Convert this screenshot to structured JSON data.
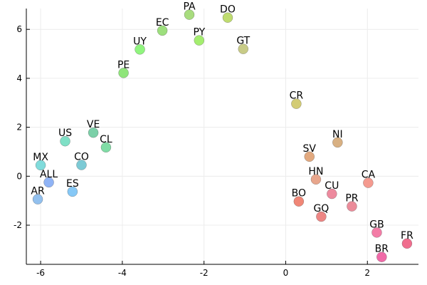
{
  "chart_data": {
    "type": "scatter",
    "title": "",
    "xlabel": "",
    "ylabel": "",
    "xlim": [
      -6.35,
      3.25
    ],
    "ylim": [
      -3.6,
      6.85
    ],
    "xticks": [
      -6,
      -4,
      -2,
      0,
      2
    ],
    "yticks": [
      -2,
      0,
      2,
      4,
      6
    ],
    "x_tick_labels": [
      "-6",
      "-4",
      "-2",
      "0",
      "2"
    ],
    "y_tick_labels": [
      "-2",
      "0",
      "2",
      "4",
      "6"
    ],
    "grid": true,
    "legend": "none",
    "points": [
      {
        "label": "PA",
        "x": -2.36,
        "y": 6.6,
        "color": "#a8dc7e"
      },
      {
        "label": "DO",
        "x": -1.42,
        "y": 6.48,
        "color": "#bfdc6f"
      },
      {
        "label": "EC",
        "x": -3.02,
        "y": 5.95,
        "color": "#9ddf7d"
      },
      {
        "label": "PY",
        "x": -2.12,
        "y": 5.55,
        "color": "#a4ee6f"
      },
      {
        "label": "UY",
        "x": -3.57,
        "y": 5.18,
        "color": "#90f57e"
      },
      {
        "label": "GT",
        "x": -1.04,
        "y": 5.2,
        "color": "#c8cb87"
      },
      {
        "label": "PE",
        "x": -3.97,
        "y": 4.22,
        "color": "#8fe57a"
      },
      {
        "label": "CR",
        "x": 0.26,
        "y": 2.96,
        "color": "#d3cc75"
      },
      {
        "label": "VE",
        "x": -4.71,
        "y": 1.78,
        "color": "#7bd0a8"
      },
      {
        "label": "US",
        "x": -5.4,
        "y": 1.43,
        "color": "#7fe0c6"
      },
      {
        "label": "CL",
        "x": -4.4,
        "y": 1.18,
        "color": "#80dca5"
      },
      {
        "label": "NI",
        "x": 1.27,
        "y": 1.38,
        "color": "#d8b082"
      },
      {
        "label": "SV",
        "x": 0.58,
        "y": 0.8,
        "color": "#e2a97f"
      },
      {
        "label": "MX",
        "x": -6.0,
        "y": 0.45,
        "color": "#80dbdb"
      },
      {
        "label": "CO",
        "x": -5.0,
        "y": 0.46,
        "color": "#7ccad5"
      },
      {
        "label": "ALL",
        "x": -5.8,
        "y": -0.25,
        "color": "#8fb3f5"
      },
      {
        "label": "HN",
        "x": 0.74,
        "y": -0.13,
        "color": "#e8a68c"
      },
      {
        "label": "CA",
        "x": 2.02,
        "y": -0.27,
        "color": "#f49a8f"
      },
      {
        "label": "ES",
        "x": -5.22,
        "y": -0.63,
        "color": "#86c8f6"
      },
      {
        "label": "CU",
        "x": 1.13,
        "y": -0.72,
        "color": "#ed8a9e"
      },
      {
        "label": "AR",
        "x": -6.07,
        "y": -0.94,
        "color": "#92c0ee"
      },
      {
        "label": "BO",
        "x": 0.32,
        "y": -1.03,
        "color": "#f08676"
      },
      {
        "label": "PR",
        "x": 1.62,
        "y": -1.23,
        "color": "#eb8c9a"
      },
      {
        "label": "GQ",
        "x": 0.87,
        "y": -1.65,
        "color": "#ee8684"
      },
      {
        "label": "GB",
        "x": 2.23,
        "y": -2.3,
        "color": "#f37ca6"
      },
      {
        "label": "FR",
        "x": 2.97,
        "y": -2.75,
        "color": "#f06e8e"
      },
      {
        "label": "BR",
        "x": 2.35,
        "y": -3.3,
        "color": "#f06aa8"
      }
    ]
  },
  "style": {
    "axis_color": "#000000",
    "grid_color": "#ececec",
    "marker_stroke_color": "#555555"
  }
}
